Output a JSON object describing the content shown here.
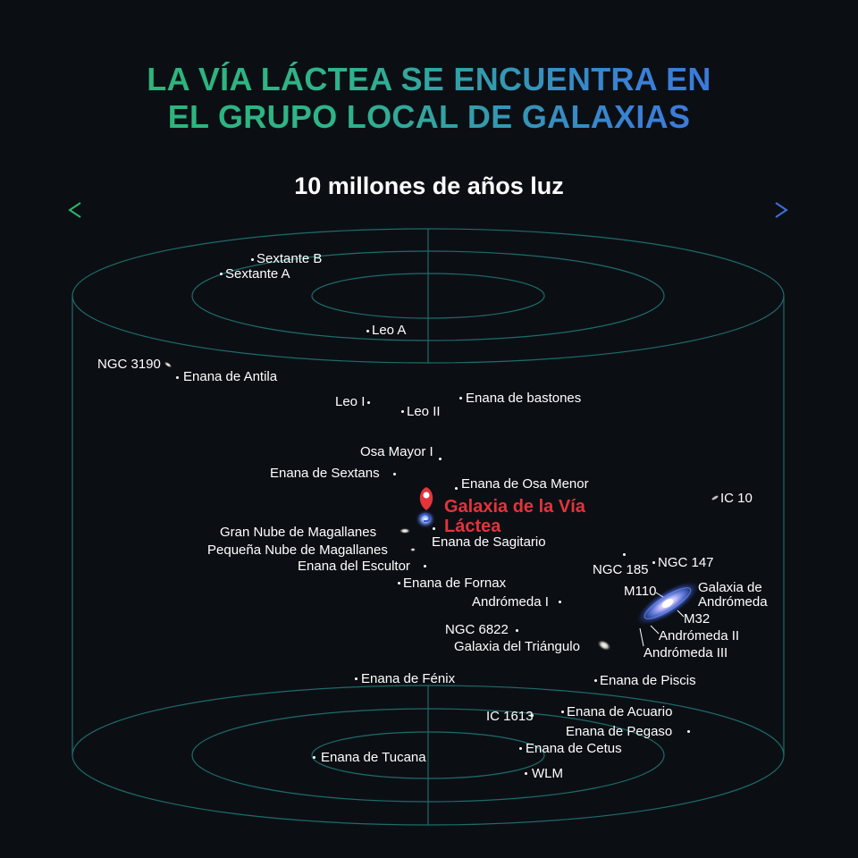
{
  "title": {
    "line1": "LA VÍA LÁCTEA SE ENCUENTRA EN",
    "line2": "EL GRUPO LOCAL DE GALAXIAS"
  },
  "scale_label": "10 millones de años luz",
  "milky_way": {
    "line1": "Galaxia de la Vía",
    "line2": "Láctea"
  },
  "galaxies": {
    "sextante_b": "Sextante B",
    "sextante_a": "Sextante A",
    "leo_a": "Leo A",
    "ngc_3190": "NGC 3190",
    "enana_antila": "Enana de Antila",
    "leo_i": "Leo I",
    "leo_ii": "Leo II",
    "enana_bastones": "Enana de bastones",
    "osa_mayor_i": "Osa Mayor I",
    "enana_sextans": "Enana de Sextans",
    "enana_osa_menor": "Enana de Osa Menor",
    "ic_10": "IC 10",
    "gran_nube": "Gran Nube de Magallanes",
    "pequena_nube": "Pequeña Nube de Magallanes",
    "enana_sagitario": "Enana de Sagitario",
    "enana_escultor": "Enana del Escultor",
    "ngc_185": "NGC 185",
    "ngc_147": "NGC 147",
    "enana_fornax": "Enana de Fornax",
    "m110": "M110",
    "andromeda_galaxy_line1": "Galaxia de",
    "andromeda_galaxy_line2": "Andrómeda",
    "andromeda_i": "Andrómeda I",
    "m32": "M32",
    "ngc_6822": "NGC 6822",
    "andromeda_ii": "Andrómeda II",
    "galaxia_triangulo": "Galaxia del Triángulo",
    "andromeda_iii": "Andrómeda III",
    "enana_fenix": "Enana de Fénix",
    "enana_piscis": "Enana de Piscis",
    "ic_1613": "IC 1613",
    "enana_acuario": "Enana de Acuario",
    "enana_pegaso": "Enana de Pegaso",
    "enana_cetus": "Enana de Cetus",
    "enana_tucana": "Enana de Tucana",
    "wlm": "WLM"
  },
  "colors": {
    "background": "#0b0f14",
    "gradient_green": "#2db56d",
    "gradient_blue": "#3f6fe0",
    "grid_line": "#1f6b6a",
    "milky_way_red": "#e3343a",
    "andromeda_blue": "#4a6fe0"
  }
}
